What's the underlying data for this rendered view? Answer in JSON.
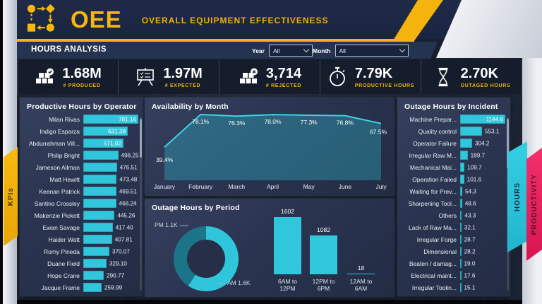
{
  "header": {
    "logo_text": "OEE",
    "title": "OVERALL EQUIPMENT EFFECTIVENESS",
    "section_title": "HOURS ANALYSIS",
    "filters": {
      "year_label": "Year",
      "year_value": "All",
      "month_label": "Month",
      "month_value": "All"
    }
  },
  "kpis": [
    {
      "value": "1.68M",
      "label": "# PRODUCED",
      "icon": "boxes-check-icon"
    },
    {
      "value": "1.97M",
      "label": "# EXPECTED",
      "icon": "presentation-checklist-icon"
    },
    {
      "value": "3,714",
      "label": "# REJECTED",
      "icon": "boxes-x-icon"
    },
    {
      "value": "7.79K",
      "label": "PRODUCTIVE HOURS",
      "icon": "stopwatch-icon"
    },
    {
      "value": "2.70K",
      "label": "OUTAGED HOURS",
      "icon": "hourglass-icon"
    }
  ],
  "side_tabs": {
    "left_tab": "KPIs",
    "right_tabs": [
      "HOURS",
      "PRODUCTIVITY"
    ]
  },
  "colors": {
    "accent_yellow": "#f4b30d",
    "accent_cyan": "#30c6dc",
    "accent_teal_dark": "#1b7487",
    "accent_pink": "#ee2a62",
    "header_navy": "#1e2a47"
  },
  "chart_data": [
    {
      "type": "bar",
      "orientation": "horizontal",
      "title": "Productive Hours by Operator",
      "categories": [
        "Milan Rivas",
        "Indigo Esparza",
        "Abdurrahman Vill...",
        "Philip Bright",
        "Jameson Allman",
        "Matt Hewitt",
        "Keenan Patrick",
        "Santino Crossley",
        "Makenzie Pickett",
        "Ewan Savage",
        "Haider Watt",
        "Romy Pineda",
        "Duane Field",
        "Hope Crane",
        "Jacque Frame"
      ],
      "values": [
        781.16,
        631.38,
        571.02,
        496.25,
        476.51,
        473.48,
        469.51,
        466.24,
        445.26,
        417.4,
        407.81,
        370.07,
        329.1,
        290.77,
        259.99
      ],
      "value_decimals": 2,
      "bar_color": "#30c6dc"
    },
    {
      "type": "area",
      "title": "Availability by Month",
      "categories": [
        "January",
        "February",
        "March",
        "April",
        "May",
        "June",
        "July"
      ],
      "values": [
        39.4,
        78.1,
        76.3,
        78.0,
        77.3,
        76.8,
        67.5
      ],
      "unit": "%",
      "ylim": [
        0,
        100
      ],
      "line_color": "#3cd3e7",
      "fill_color": "rgba(48,198,220,0.33)"
    },
    {
      "type": "donut",
      "title": "Outage Hours by Period",
      "slices": [
        {
          "label": "AM",
          "value": 1.6,
          "value_label": "AM 1.6K",
          "color": "#2fc5da"
        },
        {
          "label": "PM",
          "value": 1.1,
          "value_label": "PM 1.1K",
          "color": "#1b7487"
        }
      ]
    },
    {
      "type": "bar",
      "orientation": "vertical",
      "title": "Outage Hours by Period",
      "categories": [
        "6AM to 12PM",
        "12PM to 6PM",
        "12AM to 6AM"
      ],
      "values": [
        1602,
        1082,
        18
      ],
      "bar_color": "#30c6dc"
    },
    {
      "type": "bar",
      "orientation": "horizontal",
      "title": "Outage Hours by Incident",
      "categories": [
        "Machine Prepar...",
        "Quality control",
        "Operator Failure",
        "Irregular Raw M...",
        "Mechanical Mai...",
        "Operation Failed",
        "Waiting for Prev...",
        "Sharpening Tool...",
        "Others",
        "Lack of Raw Ma...",
        "Irregular Forge",
        "Dimensional",
        "Beaten / damag...",
        "Electrical maint...",
        "Irregular Toolin..."
      ],
      "values": [
        1144.6,
        553.1,
        304.2,
        189.7,
        109.7,
        101.6,
        54.3,
        48.6,
        43.3,
        32.1,
        28.7,
        28.2,
        19.0,
        17.6,
        15.1
      ],
      "value_decimals": 1,
      "bar_color": "#30c6dc"
    }
  ]
}
